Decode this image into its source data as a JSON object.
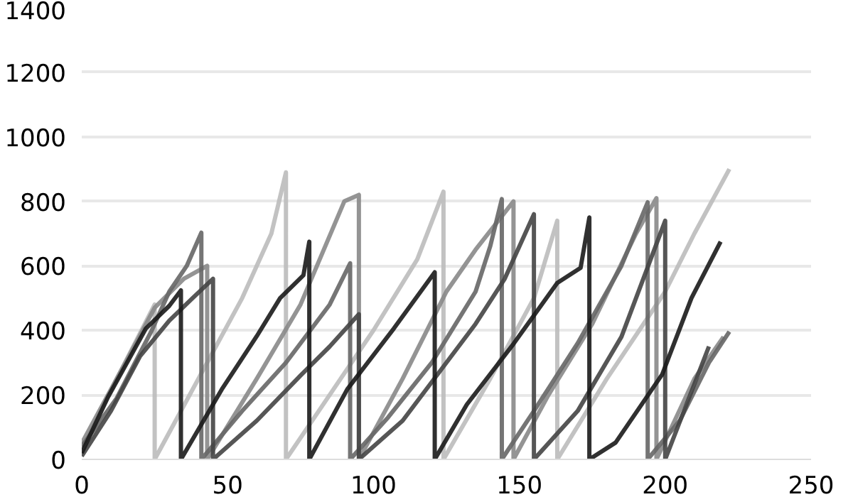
{
  "chart_data": {
    "type": "line",
    "xlim": [
      0,
      250
    ],
    "ylim": [
      0,
      1400
    ],
    "xticks": [
      0,
      50,
      100,
      150,
      200,
      250
    ],
    "yticks": [
      0,
      200,
      400,
      600,
      800,
      1000,
      1200,
      1400
    ],
    "grid": "y",
    "line_style": "solid",
    "series": [
      {
        "color": "#bbbbbb",
        "x": [
          0,
          12,
          25,
          25,
          40,
          55,
          65,
          70,
          70,
          85,
          100,
          115,
          124,
          124,
          140,
          155,
          163,
          163,
          180,
          200,
          210,
          222
        ],
        "values": [
          30,
          250,
          480,
          0,
          250,
          500,
          700,
          890,
          0,
          200,
          400,
          620,
          830,
          0,
          250,
          500,
          740,
          0,
          250,
          520,
          700,
          900
        ]
      },
      {
        "color": "#888888",
        "x": [
          0,
          15,
          25,
          35,
          43,
          43,
          60,
          75,
          90,
          95,
          95,
          110,
          125,
          135,
          148,
          148,
          160,
          175,
          190,
          197,
          197,
          210,
          220
        ],
        "values": [
          50,
          300,
          470,
          560,
          600,
          0,
          250,
          480,
          800,
          820,
          0,
          250,
          520,
          650,
          800,
          0,
          200,
          420,
          700,
          810,
          0,
          250,
          380
        ]
      },
      {
        "color": "#666666",
        "x": [
          0,
          12,
          24,
          30,
          36,
          41,
          41,
          55,
          70,
          85,
          92,
          92,
          105,
          120,
          135,
          140,
          144,
          144,
          155,
          170,
          185,
          194,
          194,
          205,
          215,
          222
        ],
        "values": [
          40,
          190,
          400,
          520,
          600,
          703,
          0,
          150,
          300,
          480,
          608,
          0,
          130,
          300,
          520,
          660,
          807,
          0,
          150,
          360,
          600,
          797,
          0,
          120,
          300,
          396
        ]
      },
      {
        "color": "#444444",
        "x": [
          0,
          10,
          20,
          30,
          38,
          45,
          45,
          60,
          75,
          85,
          95,
          95,
          110,
          125,
          135,
          145,
          155,
          155,
          170,
          185,
          200,
          200,
          215
        ],
        "values": [
          10,
          150,
          320,
          430,
          500,
          560,
          0,
          120,
          260,
          350,
          450,
          0,
          120,
          300,
          420,
          560,
          760,
          0,
          150,
          380,
          740,
          0,
          350
        ]
      },
      {
        "color": "#1a1a1a",
        "x": [
          0,
          9,
          22,
          30,
          34,
          34,
          48,
          60,
          68,
          76,
          78,
          78,
          91,
          107,
          121,
          121,
          132,
          148,
          163,
          171,
          174,
          174,
          183,
          199,
          209,
          219
        ],
        "values": [
          20,
          193,
          406,
          476,
          524,
          0,
          217,
          382,
          500,
          571,
          675,
          0,
          217,
          406,
          580,
          0,
          170,
          358,
          547,
          594,
          750,
          0,
          52,
          264,
          500,
          675
        ]
      }
    ]
  }
}
